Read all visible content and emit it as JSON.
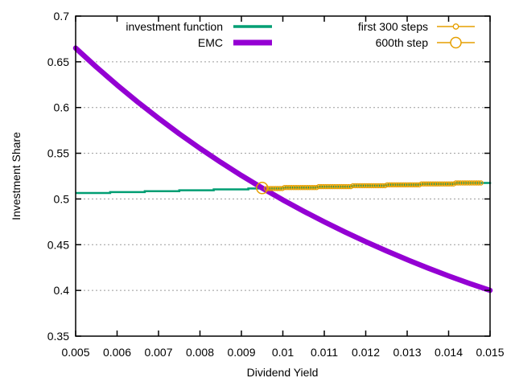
{
  "chart_data": {
    "type": "line",
    "title": "",
    "xlabel": "Dividend Yield",
    "ylabel": "Investment Share",
    "xlim": [
      0.005,
      0.015
    ],
    "ylim": [
      0.35,
      0.7
    ],
    "xticks": [
      "0.005",
      "0.006",
      "0.007",
      "0.008",
      "0.009",
      "0.01",
      "0.011",
      "0.012",
      "0.013",
      "0.014",
      "0.015"
    ],
    "yticks": [
      "0.35",
      "0.4",
      "0.45",
      "0.5",
      "0.55",
      "0.6",
      "0.65",
      "0.7"
    ],
    "grid": "horizontal-dotted",
    "legend_position": "top-inside-two-columns",
    "colors": {
      "investment_function": "#009e73",
      "emc": "#9400d3",
      "steps": "#e69f00",
      "grid": "#9a9a9a",
      "axis": "#000000"
    },
    "series": [
      {
        "name": "investment function",
        "color": "#009e73",
        "style": "steps",
        "points": [
          [
            0.005,
            0.5065
          ],
          [
            0.005833,
            0.5075
          ],
          [
            0.006667,
            0.5085
          ],
          [
            0.0075,
            0.5095
          ],
          [
            0.008333,
            0.5105
          ],
          [
            0.009167,
            0.5115
          ],
          [
            0.01,
            0.5125
          ],
          [
            0.010833,
            0.5135
          ],
          [
            0.011667,
            0.5145
          ],
          [
            0.0125,
            0.5155
          ],
          [
            0.013333,
            0.5165
          ],
          [
            0.014167,
            0.5175
          ],
          [
            0.015,
            0.5185
          ]
        ]
      },
      {
        "name": "EMC",
        "color": "#9400d3",
        "style": "line",
        "points": [
          [
            0.005,
            0.665
          ],
          [
            0.0055,
            0.6443
          ],
          [
            0.006,
            0.6246
          ],
          [
            0.0065,
            0.6059
          ],
          [
            0.007,
            0.5882
          ],
          [
            0.0075,
            0.5713
          ],
          [
            0.008,
            0.5553
          ],
          [
            0.0085,
            0.5401
          ],
          [
            0.009,
            0.5257
          ],
          [
            0.0095,
            0.512
          ],
          [
            0.01,
            0.499
          ],
          [
            0.0105,
            0.4867
          ],
          [
            0.011,
            0.475
          ],
          [
            0.0115,
            0.4638
          ],
          [
            0.012,
            0.4532
          ],
          [
            0.0125,
            0.4432
          ],
          [
            0.013,
            0.4336
          ],
          [
            0.0135,
            0.4245
          ],
          [
            0.014,
            0.4159
          ],
          [
            0.0145,
            0.4077
          ],
          [
            0.015,
            0.4
          ]
        ]
      },
      {
        "name": "first 300 steps",
        "color": "#e69f00",
        "style": "points",
        "x_start": 0.0096,
        "x_end": 0.01478,
        "count": 95,
        "on_series": "investment function"
      },
      {
        "name": "600th step",
        "color": "#e69f00",
        "style": "point",
        "point": [
          0.0095,
          0.512
        ]
      }
    ]
  }
}
